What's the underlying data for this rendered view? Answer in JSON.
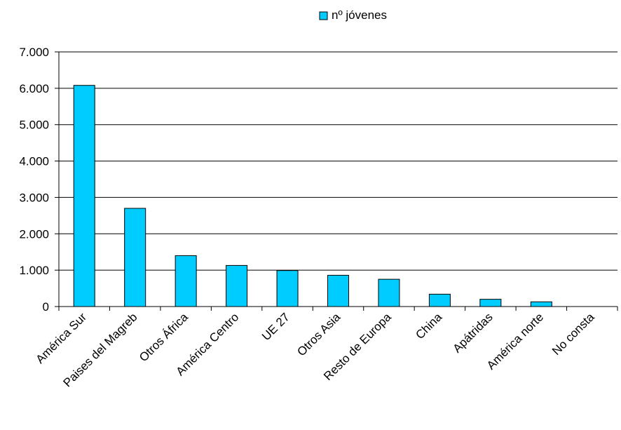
{
  "chart_data": {
    "type": "bar",
    "categories": [
      "América Sur",
      "Paises del Magreb",
      "Otros África",
      "América Centro",
      "UE 27",
      "Otros Asia",
      "Resto de Europa",
      "China",
      "Apátridas",
      "América norte",
      "No consta"
    ],
    "series": [
      {
        "name": "nº jóvenes",
        "values": [
          6080,
          2700,
          1400,
          1130,
          990,
          860,
          750,
          340,
          200,
          130,
          0
        ]
      }
    ],
    "y_ticks": [
      "0",
      "1.000",
      "2.000",
      "3.000",
      "4.000",
      "5.000",
      "6.000",
      "7.000"
    ],
    "ylim": [
      0,
      7000
    ],
    "grid": "horizontal",
    "legend_position": "top-center",
    "colors": {
      "bar_fill": "#00CCFF",
      "bar_stroke": "#000000",
      "grid": "#000000",
      "axis": "#000000"
    }
  }
}
